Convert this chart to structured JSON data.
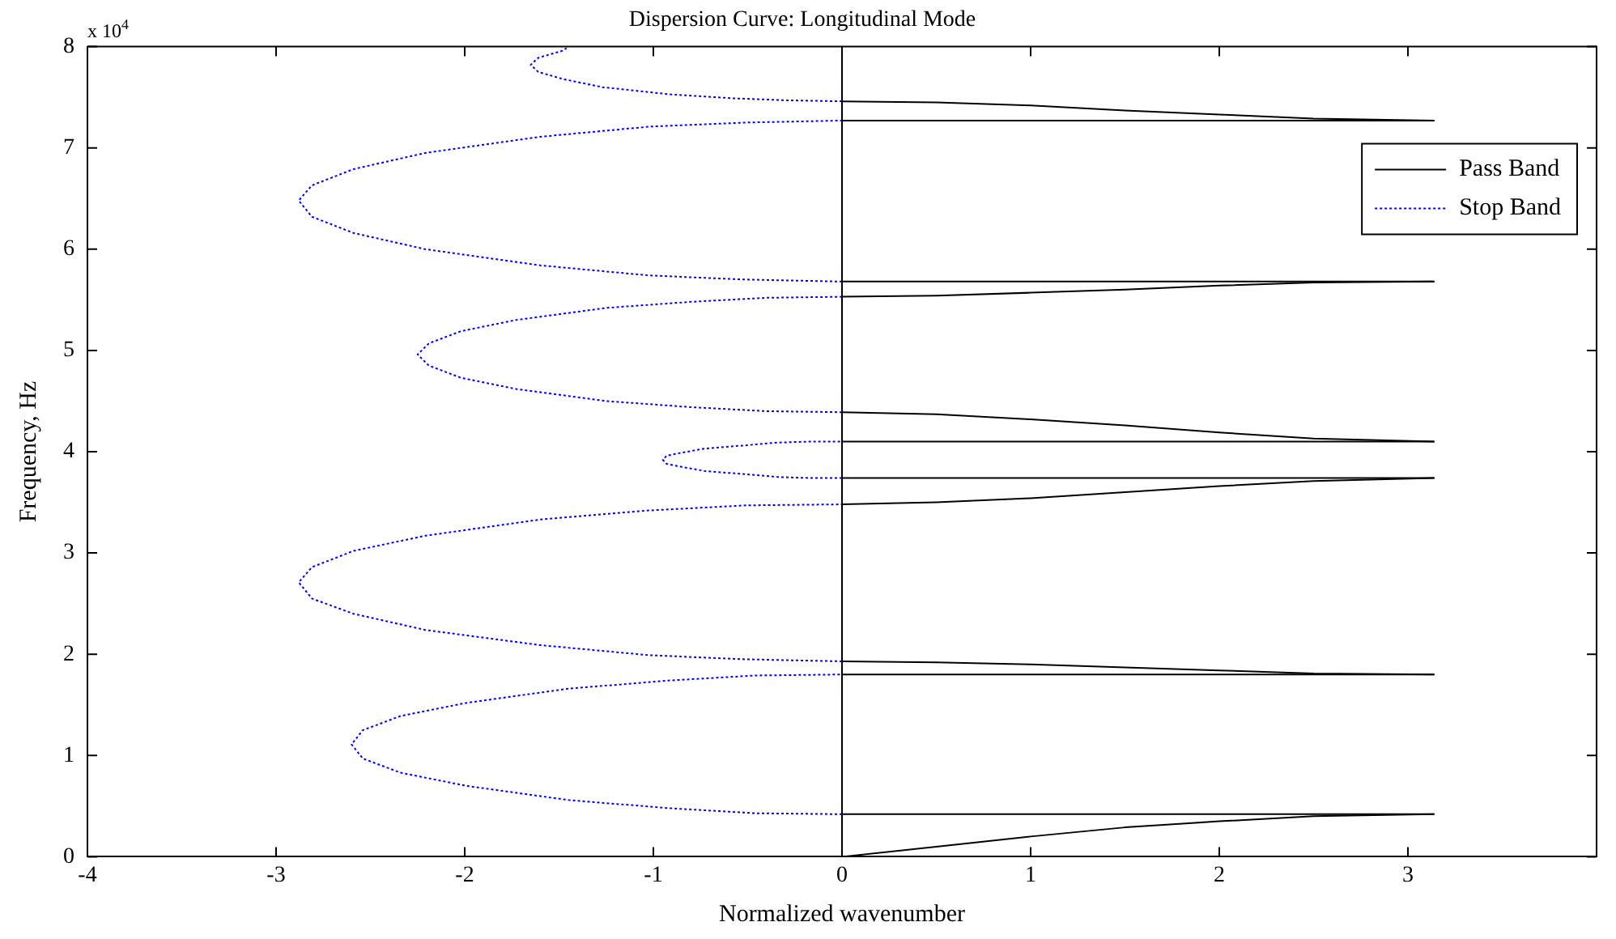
{
  "chart_data": {
    "type": "line",
    "title": "Dispersion Curve: Longitudinal Mode",
    "xlabel": "Normalized wavenumber",
    "ylabel": "Frequency, Hz",
    "annotations": [
      "x 10$^{4}$"
    ],
    "xlim": [
      -4,
      4
    ],
    "xticks": [
      -4,
      -3,
      -2,
      -1,
      0,
      1,
      2,
      3
    ],
    "ylim": [
      0,
      8
    ],
    "yticks": [
      0,
      1,
      2,
      3,
      4,
      5,
      6,
      7,
      8
    ],
    "grid": false,
    "legend": "top right",
    "marker": "none",
    "ref_lines": [
      {
        "axis": "x",
        "value": 0,
        "color": "#000000"
      }
    ],
    "series": [
      {
        "name": "Pass Band",
        "color": "#000000",
        "line_style": "solid",
        "x": [
          0,
          0.5,
          1,
          1.5,
          2,
          2.5,
          3.14
        ],
        "values": [
          0,
          0.1,
          0.2,
          0.29,
          0.35,
          0.4,
          0.42
        ]
      },
      {
        "color": "#000000",
        "line_style": "solid",
        "x": [
          0,
          3.14
        ],
        "values": [
          0.42,
          0.42
        ]
      },
      {
        "color": "#000000",
        "line_style": "solid",
        "x": [
          0,
          0.5,
          1,
          1.5,
          2,
          2.5,
          3.14
        ],
        "values": [
          1.93,
          1.92,
          1.9,
          1.87,
          1.84,
          1.81,
          1.8
        ]
      },
      {
        "color": "#000000",
        "line_style": "solid",
        "x": [
          0,
          3.14
        ],
        "values": [
          1.8,
          1.8
        ]
      },
      {
        "color": "#000000",
        "line_style": "solid",
        "x": [
          0,
          0.5,
          1,
          1.5,
          2,
          2.5,
          3.14
        ],
        "values": [
          3.48,
          3.5,
          3.54,
          3.6,
          3.66,
          3.71,
          3.74
        ]
      },
      {
        "color": "#000000",
        "line_style": "solid",
        "x": [
          0,
          3.14
        ],
        "values": [
          3.74,
          3.74
        ]
      },
      {
        "color": "#000000",
        "line_style": "solid",
        "x": [
          0,
          0.5,
          1,
          1.5,
          2,
          2.5,
          3.14
        ],
        "values": [
          4.39,
          4.37,
          4.32,
          4.26,
          4.19,
          4.13,
          4.1
        ]
      },
      {
        "color": "#000000",
        "line_style": "solid",
        "x": [
          0,
          3.14
        ],
        "values": [
          4.1,
          4.1
        ]
      },
      {
        "color": "#000000",
        "line_style": "solid",
        "x": [
          0,
          0.5,
          1,
          1.5,
          2,
          2.5,
          3.14
        ],
        "values": [
          5.53,
          5.54,
          5.57,
          5.6,
          5.64,
          5.67,
          5.68
        ]
      },
      {
        "color": "#000000",
        "line_style": "solid",
        "x": [
          0,
          3.14
        ],
        "values": [
          5.68,
          5.68
        ]
      },
      {
        "color": "#000000",
        "line_style": "solid",
        "x": [
          0,
          0.5,
          1,
          1.5,
          2,
          2.5,
          3.14
        ],
        "values": [
          7.46,
          7.45,
          7.42,
          7.37,
          7.33,
          7.29,
          7.27
        ]
      },
      {
        "color": "#000000",
        "line_style": "solid",
        "x": [
          0,
          3.14
        ],
        "values": [
          7.27,
          7.27
        ]
      },
      {
        "name": "Stop Band",
        "color": "#0000ff",
        "line_style": "dotted",
        "x": [
          0,
          -0.46,
          -0.92,
          -1.45,
          -1.99,
          -2.34,
          -2.54,
          -2.6,
          -2.54,
          -2.34,
          -1.99,
          -1.45,
          -0.92,
          -0.46,
          0
        ],
        "values": [
          0.42,
          0.43,
          0.48,
          0.56,
          0.7,
          0.83,
          0.97,
          1.11,
          1.25,
          1.39,
          1.52,
          1.66,
          1.74,
          1.79,
          1.8
        ]
      },
      {
        "color": "#0000ff",
        "line_style": "dotted",
        "x": [
          0,
          -0.51,
          -1.02,
          -1.6,
          -2.21,
          -2.59,
          -2.81,
          -2.88,
          -2.81,
          -2.59,
          -2.21,
          -1.6,
          -1.02,
          -0.51,
          0
        ],
        "values": [
          1.93,
          1.95,
          1.99,
          2.09,
          2.24,
          2.4,
          2.55,
          2.71,
          2.86,
          3.02,
          3.17,
          3.33,
          3.42,
          3.47,
          3.48
        ]
      },
      {
        "color": "#0000ff",
        "line_style": "dotted",
        "x": [
          0,
          -0.17,
          -0.34,
          -0.53,
          -0.73,
          -0.85,
          -0.93,
          -0.95,
          -0.93,
          -0.85,
          -0.73,
          -0.53,
          -0.34,
          -0.17,
          0
        ],
        "values": [
          3.74,
          3.74,
          3.75,
          3.78,
          3.81,
          3.85,
          3.88,
          3.92,
          3.96,
          3.99,
          4.03,
          4.06,
          4.09,
          4.1,
          4.1
        ]
      },
      {
        "color": "#0000ff",
        "line_style": "dotted",
        "x": [
          0,
          -0.4,
          -0.8,
          -1.25,
          -1.73,
          -2.02,
          -2.19,
          -2.25,
          -2.19,
          -2.02,
          -1.73,
          -1.25,
          -0.8,
          -0.4,
          0
        ],
        "values": [
          4.39,
          4.4,
          4.44,
          4.5,
          4.62,
          4.73,
          4.85,
          4.96,
          5.07,
          5.19,
          5.3,
          5.42,
          5.48,
          5.52,
          5.53
        ]
      },
      {
        "color": "#0000ff",
        "line_style": "dotted",
        "x": [
          0,
          -0.51,
          -1.02,
          -1.6,
          -2.21,
          -2.59,
          -2.81,
          -2.88,
          -2.81,
          -2.59,
          -2.21,
          -1.6,
          -1.02,
          -0.51,
          0
        ],
        "values": [
          5.68,
          5.7,
          5.74,
          5.84,
          6,
          6.16,
          6.32,
          6.48,
          6.63,
          6.79,
          6.95,
          7.11,
          7.21,
          7.25,
          7.27
        ]
      },
      {
        "color": "#0000ff",
        "line_style": "dotted",
        "x": [
          0,
          -0.29,
          -0.58,
          -0.92,
          -1.27,
          -1.48,
          -1.61,
          -1.65,
          -1.61,
          -1.48,
          -1.45
        ],
        "values": [
          7.46,
          7.47,
          7.49,
          7.53,
          7.6,
          7.68,
          7.75,
          7.82,
          7.89,
          7.96,
          8
        ]
      }
    ]
  }
}
